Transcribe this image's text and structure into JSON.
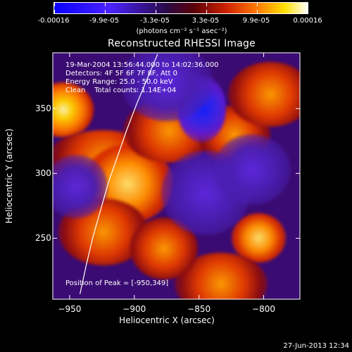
{
  "colorbar": {
    "tick_labels": [
      "-0.00016",
      "-9.9e-05",
      "-3.3e-05",
      "3.3e-05",
      "9.9e-05",
      "0.00016"
    ],
    "units": "(photons cm⁻² s⁻¹ asec⁻²)"
  },
  "chart_data": {
    "type": "heatmap",
    "title": "Reconstructed RHESSI Image",
    "xlabel": "Heliocentric X (arcsec)",
    "ylabel": "Heliocentric Y (arcsec)",
    "xlim": [
      -963,
      -772
    ],
    "ylim": [
      203,
      393
    ],
    "xticks": [
      -950,
      -900,
      -850,
      -800
    ],
    "yticks": [
      250,
      300,
      350
    ],
    "xtick_labels": [
      "−950",
      "−900",
      "−850",
      "−800"
    ],
    "ytick_labels": [
      "250",
      "300",
      "350"
    ],
    "color_range": [
      -0.00016,
      0.00016
    ],
    "peak_position": [
      -950,
      349
    ],
    "limb_curve": [
      {
        "x": -882,
        "y": 392
      },
      {
        "x": -890,
        "y": 373
      },
      {
        "x": -898,
        "y": 354
      },
      {
        "x": -906,
        "y": 333
      },
      {
        "x": -913,
        "y": 313
      },
      {
        "x": -920,
        "y": 293
      },
      {
        "x": -926,
        "y": 272
      },
      {
        "x": -932,
        "y": 251
      },
      {
        "x": -937,
        "y": 230
      },
      {
        "x": -942,
        "y": 207
      }
    ],
    "hot_regions": [
      {
        "x": -955,
        "y": 349,
        "level": 1.0,
        "name": "upper-left peak"
      },
      {
        "x": -924,
        "y": 310,
        "level": 0.82,
        "name": "left bright band"
      },
      {
        "x": -905,
        "y": 292,
        "level": 0.86,
        "name": "center-left bright area"
      },
      {
        "x": -924,
        "y": 255,
        "level": 0.78,
        "name": "lower-left bright area"
      },
      {
        "x": -873,
        "y": 333,
        "level": 0.76,
        "name": "center arc"
      },
      {
        "x": -823,
        "y": 330,
        "level": 0.7,
        "name": "right bright area"
      },
      {
        "x": -804,
        "y": 250,
        "level": 0.85,
        "name": "lower-right bright spot"
      },
      {
        "x": -833,
        "y": 215,
        "level": 0.68,
        "name": "bottom bright area"
      },
      {
        "x": -795,
        "y": 361,
        "level": 0.74,
        "name": "upper-right bright area"
      },
      {
        "x": -877,
        "y": 242,
        "level": 0.72,
        "name": "lower-center bright area"
      }
    ],
    "cool_regions": [
      {
        "x": -848,
        "y": 350,
        "level": -0.92,
        "name": "blue minimum"
      },
      {
        "x": -875,
        "y": 370,
        "level": -0.55,
        "name": "upper purple"
      },
      {
        "x": -845,
        "y": 285,
        "level": -0.45,
        "name": "central purple"
      },
      {
        "x": -809,
        "y": 303,
        "level": -0.48,
        "name": "right purple"
      },
      {
        "x": -945,
        "y": 290,
        "level": -0.42,
        "name": "left purple"
      }
    ]
  },
  "info": {
    "line1": "19-Mar-2004 13:56:44.000 to 14:02:36.000",
    "line2": "Detectors: 4F 5F 6F 7F 8F, Att 0",
    "line3": "Energy Range: 25.0 - 50.0 keV",
    "line4": "Clean    Total counts: 1.14E+04",
    "peak": "Position of Peak = [-950,349]"
  },
  "timestamp": "27-Jun-2013 12:34"
}
